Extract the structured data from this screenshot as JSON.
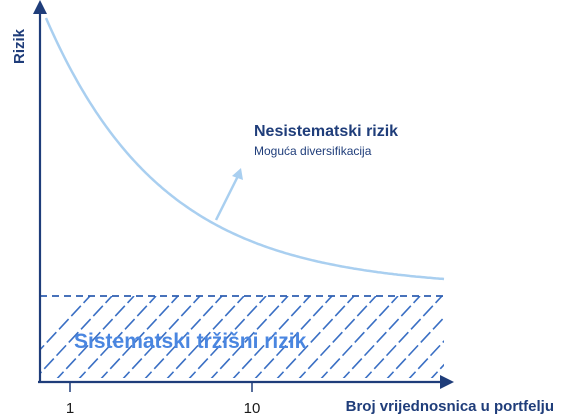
{
  "chart_data": {
    "type": "line",
    "ylabel": "Rizik",
    "xlabel": "Broj vrijednosnica u portfelju",
    "x_ticks": [
      "1",
      "10"
    ],
    "annotations": {
      "unsystematic_title": "Nesistematski rizik",
      "unsystematic_subtitle": "Moguća diversifikacija",
      "systematic_label": "Sistematski tržišni rizik"
    },
    "colors": {
      "axis": "#1f3d7a",
      "curve": "#a9cff0",
      "dashed_line": "#2f5fb0",
      "hatch": "#3a6fc4",
      "systematic_text": "#4a86e0",
      "label_text": "#1f3d7a"
    }
  }
}
